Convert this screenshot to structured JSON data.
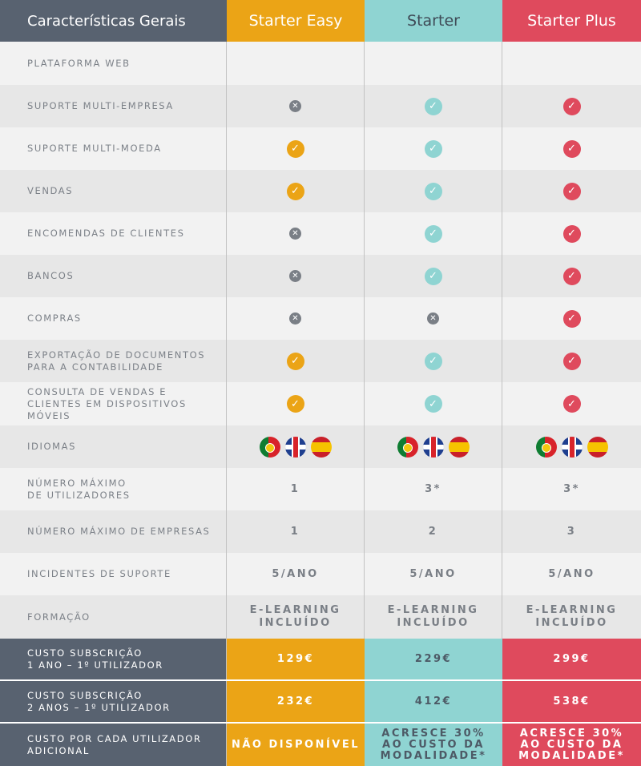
{
  "header": {
    "features": "Características Gerais",
    "plan1": "Starter Easy",
    "plan2": "Starter",
    "plan3": "Starter Plus"
  },
  "icons": {
    "check": "check-icon",
    "cross": "cross-icon"
  },
  "colors": {
    "starter_easy": "#eba416",
    "starter": "#8fd4d2",
    "starter_plus": "#df4a5d",
    "dark": "#586270"
  },
  "rows": [
    {
      "label": "PLATAFORMA WEB",
      "type": "empty"
    },
    {
      "label": "SUPORTE MULTI-EMPRESA",
      "values": [
        "no",
        "yes",
        "yes"
      ]
    },
    {
      "label": "SUPORTE MULTI-MOEDA",
      "values": [
        "yes",
        "yes",
        "yes"
      ]
    },
    {
      "label": "VENDAS",
      "values": [
        "yes",
        "yes",
        "yes"
      ]
    },
    {
      "label": "ENCOMENDAS DE CLIENTES",
      "values": [
        "no",
        "yes",
        "yes"
      ]
    },
    {
      "label": "BANCOS",
      "values": [
        "no",
        "yes",
        "yes"
      ]
    },
    {
      "label": "COMPRAS",
      "values": [
        "no",
        "no",
        "yes"
      ]
    },
    {
      "label": "EXPORTAÇÃO DE DOCUMENTOS\nPARA A CONTABILIDADE",
      "values": [
        "yes",
        "yes",
        "yes"
      ]
    },
    {
      "label": "CONSULTA DE VENDAS E\nCLIENTES EM DISPOSITIVOS MÓVEIS",
      "values": [
        "yes",
        "yes",
        "yes"
      ]
    },
    {
      "label": "IDIOMAS",
      "type": "flags",
      "flags": [
        "portugal-flag-icon",
        "uk-flag-icon",
        "spain-flag-icon"
      ]
    },
    {
      "label": "NÚMERO MÁXIMO\nDE UTILIZADORES",
      "text": [
        "1",
        "3*",
        "3*"
      ]
    },
    {
      "label": "NÚMERO MÁXIMO DE EMPRESAS",
      "text": [
        "1",
        "2",
        "3"
      ]
    },
    {
      "label": "INCIDENTES DE SUPORTE",
      "text": [
        "5/ANO",
        "5/ANO",
        "5/ANO"
      ]
    },
    {
      "label": "FORMAÇÃO",
      "text": [
        "E-LEARNING\nINCLUÍDO",
        "E-LEARNING\nINCLUÍDO",
        "E-LEARNING\nINCLUÍDO"
      ]
    }
  ],
  "prices": [
    {
      "label": "CUSTO SUBSCRIÇÃO\n1 ANO – 1º UTILIZADOR",
      "values": [
        "129€",
        "229€",
        "299€"
      ]
    },
    {
      "label": "CUSTO SUBSCRIÇÃO\n2 ANOS – 1º UTILIZADOR",
      "values": [
        "232€",
        "412€",
        "538€"
      ]
    },
    {
      "label": "CUSTO POR CADA UTILIZADOR\nADICIONAL",
      "values": [
        "NÃO DISPONÍVEL",
        "ACRESCE 30%\nAO CUSTO DA\nMODALIDADE*",
        "ACRESCE 30%\nAO CUSTO DA\nMODALIDADE*"
      ]
    }
  ]
}
